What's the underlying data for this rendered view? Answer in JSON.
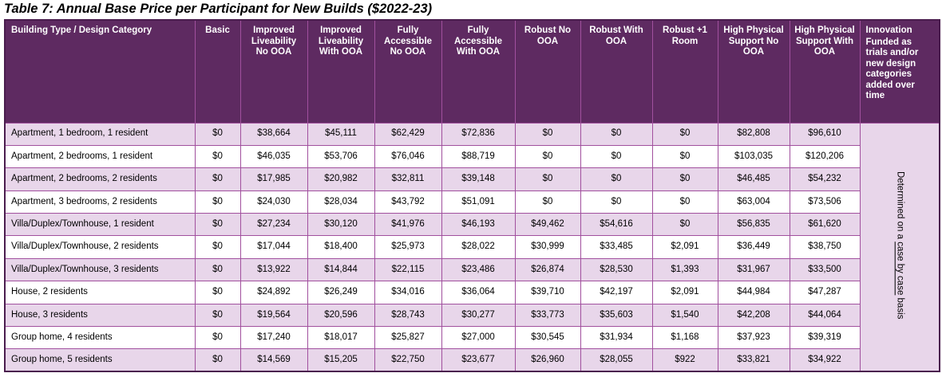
{
  "title": "Table 7: Annual Base Price per Participant for New Builds ($2022-23)",
  "colors": {
    "header-bg": "#5e2a61",
    "grid-border": "#a1509e",
    "stripe-bg": "#e8d6ea",
    "outer-border": "#4a1d4e"
  },
  "table": {
    "columns": [
      "Building Type / Design Category",
      "Basic",
      "Improved Liveability No OOA",
      "Improved Liveability With OOA",
      "Fully Accessible No OOA",
      "Fully Accessible With OOA",
      "Robust No OOA",
      "Robust With OOA",
      "Robust +1 Room",
      "High Physical Support No OOA",
      "High Physical Support With OOA"
    ],
    "innovation_header": {
      "title": "Innovation",
      "subtitle": "Funded as trials and/or new design categories added over time"
    },
    "innovation_note": {
      "prefix": "Determined on a ",
      "link": "case by case",
      "suffix": " basis"
    },
    "rows": [
      {
        "category": "Apartment, 1 bedroom, 1 resident",
        "values": [
          "$0",
          "$38,664",
          "$45,111",
          "$62,429",
          "$72,836",
          "$0",
          "$0",
          "$0",
          "$82,808",
          "$96,610"
        ]
      },
      {
        "category": "Apartment, 2 bedrooms, 1 resident",
        "values": [
          "$0",
          "$46,035",
          "$53,706",
          "$76,046",
          "$88,719",
          "$0",
          "$0",
          "$0",
          "$103,035",
          "$120,206"
        ]
      },
      {
        "category": "Apartment, 2 bedrooms, 2 residents",
        "values": [
          "$0",
          "$17,985",
          "$20,982",
          "$32,811",
          "$39,148",
          "$0",
          "$0",
          "$0",
          "$46,485",
          "$54,232"
        ]
      },
      {
        "category": "Apartment, 3 bedrooms, 2 residents",
        "values": [
          "$0",
          "$24,030",
          "$28,034",
          "$43,792",
          "$51,091",
          "$0",
          "$0",
          "$0",
          "$63,004",
          "$73,506"
        ]
      },
      {
        "category": "Villa/Duplex/Townhouse, 1 resident",
        "values": [
          "$0",
          "$27,234",
          "$30,120",
          "$41,976",
          "$46,193",
          "$49,462",
          "$54,616",
          "$0",
          "$56,835",
          "$61,620"
        ]
      },
      {
        "category": "Villa/Duplex/Townhouse, 2 residents",
        "values": [
          "$0",
          "$17,044",
          "$18,400",
          "$25,973",
          "$28,022",
          "$30,999",
          "$33,485",
          "$2,091",
          "$36,449",
          "$38,750"
        ]
      },
      {
        "category": "Villa/Duplex/Townhouse, 3 residents",
        "values": [
          "$0",
          "$13,922",
          "$14,844",
          "$22,115",
          "$23,486",
          "$26,874",
          "$28,530",
          "$1,393",
          "$31,967",
          "$33,500"
        ]
      },
      {
        "category": "House, 2 residents",
        "values": [
          "$0",
          "$24,892",
          "$26,249",
          "$34,016",
          "$36,064",
          "$39,710",
          "$42,197",
          "$2,091",
          "$44,984",
          "$47,287"
        ]
      },
      {
        "category": "House, 3 residents",
        "values": [
          "$0",
          "$19,564",
          "$20,596",
          "$28,743",
          "$30,277",
          "$33,773",
          "$35,603",
          "$1,540",
          "$42,208",
          "$44,064"
        ]
      },
      {
        "category": "Group home, 4 residents",
        "values": [
          "$0",
          "$17,240",
          "$18,017",
          "$25,827",
          "$27,000",
          "$30,545",
          "$31,934",
          "$1,168",
          "$37,923",
          "$39,319"
        ]
      },
      {
        "category": "Group home, 5 residents",
        "values": [
          "$0",
          "$14,569",
          "$15,205",
          "$22,750",
          "$23,677",
          "$26,960",
          "$28,055",
          "$922",
          "$33,821",
          "$34,922"
        ]
      }
    ]
  }
}
